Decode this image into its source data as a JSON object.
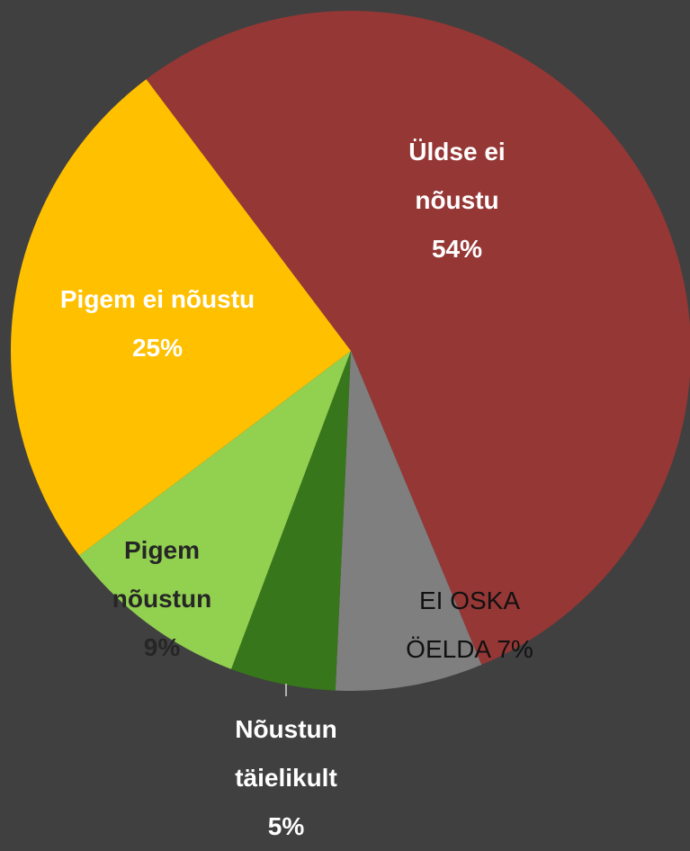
{
  "chart_data": {
    "type": "pie",
    "categories": [
      "Üldse ei nõustu",
      "EI OSKA ÖELDA",
      "Nõustun täielikult",
      "Pigem nõustun",
      "Pigem ei nõustu"
    ],
    "values": [
      54,
      7,
      5,
      9,
      25
    ],
    "value_labels": [
      "54%",
      "7%",
      "5%",
      "9%",
      "25%"
    ],
    "colors": [
      "#953735",
      "#7f7f7f",
      "#37761a",
      "#92d050",
      "#ffc000"
    ]
  }
}
